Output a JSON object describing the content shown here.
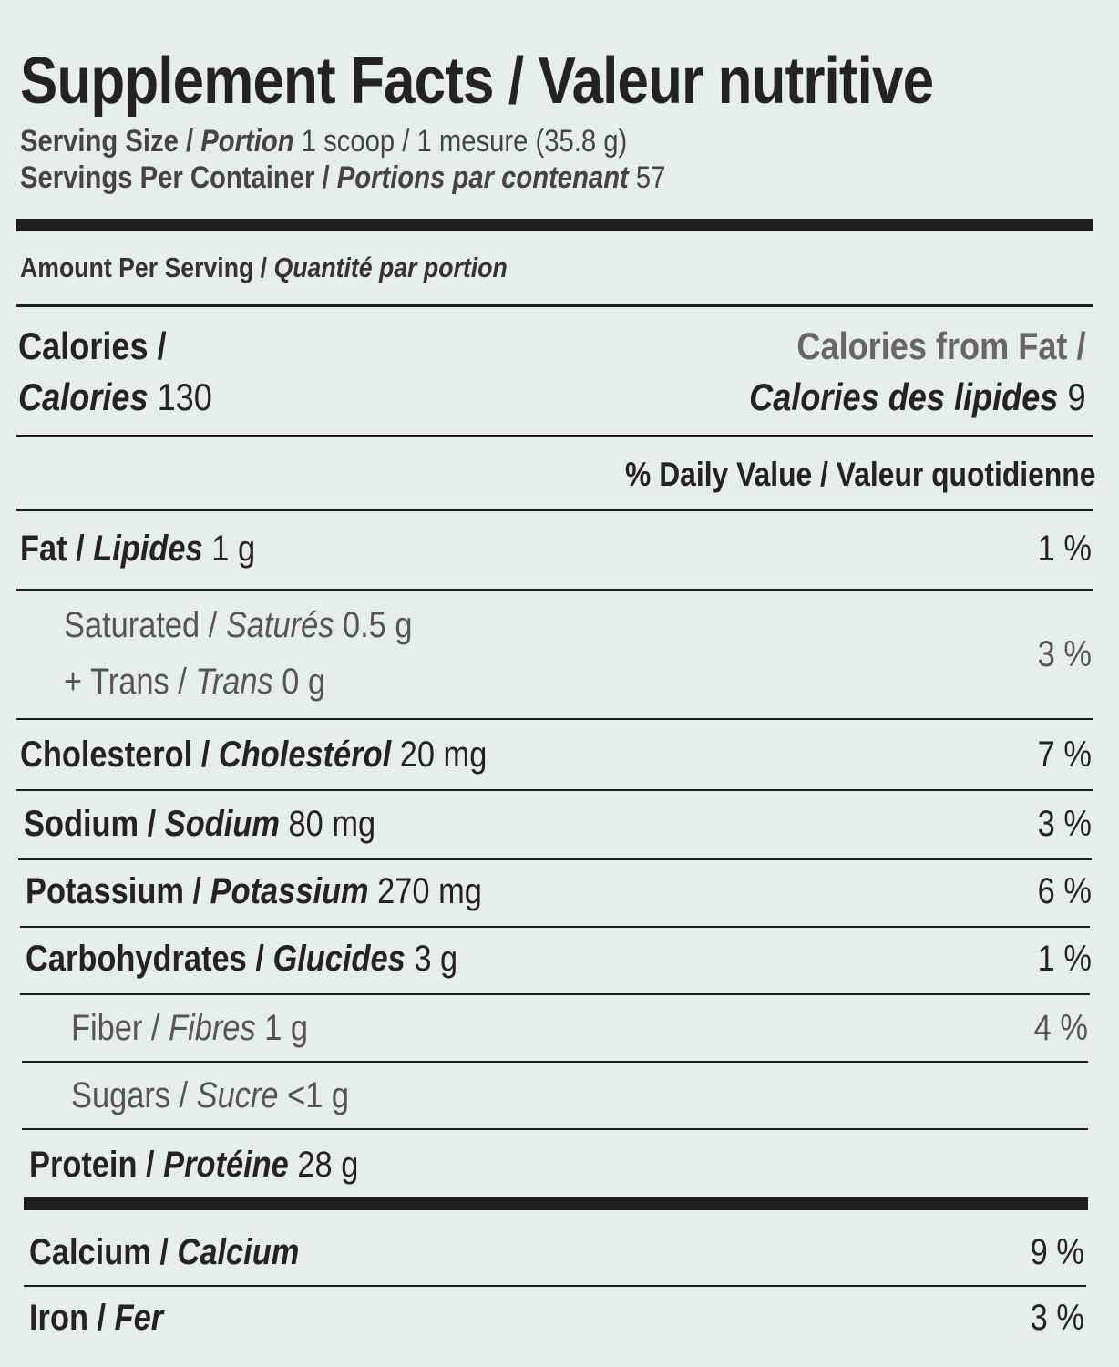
{
  "title": "Supplement Facts / Valeur nutritive",
  "serving_size": {
    "label": "Serving Size / ",
    "label_fr": "Portion",
    "value": " 1 scoop / 1 mesure (35.8 g)"
  },
  "servings_per_container": {
    "label": "Servings Per Container / ",
    "label_fr": "Portions par contenant",
    "value": " 57"
  },
  "amount_per_serving": {
    "label": "Amount Per Serving / ",
    "label_fr": "Quantité par portion"
  },
  "calories": {
    "label": "Calories /",
    "label_fr": "Calories",
    "value": " 130"
  },
  "calories_from_fat": {
    "label": "Calories from Fat /",
    "label_fr": "Calories des lipides",
    "value": " 9"
  },
  "daily_value_header": "% Daily Value / Valeur quotidienne",
  "rows": [
    {
      "en": "Fat / ",
      "fr": "Lipides",
      "amount": " 1 g",
      "dv": "1 %"
    },
    {
      "en": "Saturated / ",
      "fr": "Saturés",
      "amount": " 0.5 g",
      "dv": "3 %"
    },
    {
      "en": "+ Trans / ",
      "fr": "Trans",
      "amount": " 0 g"
    },
    {
      "en": "Cholesterol / ",
      "fr": "Cholestérol",
      "amount": " 20 mg",
      "dv": "7 %"
    },
    {
      "en": "Sodium / ",
      "fr": "Sodium",
      "amount": " 80 mg",
      "dv": "3 %"
    },
    {
      "en": "Potassium / ",
      "fr": "Potassium",
      "amount": " 270 mg",
      "dv": "6 %"
    },
    {
      "en": "Carbohydrates / ",
      "fr": "Glucides",
      "amount": " 3 g",
      "dv": "1 %"
    },
    {
      "en": "Fiber / ",
      "fr": "Fibres",
      "amount": " 1 g",
      "dv": "4 %"
    },
    {
      "en": "Sugars / ",
      "fr": "Sucre",
      "amount": " <1 g"
    },
    {
      "en": "Protein / ",
      "fr": "Protéine",
      "amount": " 28 g"
    },
    {
      "en": "Calcium / ",
      "fr": "Calcium",
      "dv": "9 %"
    },
    {
      "en": "Iron / ",
      "fr": "Fer",
      "dv": "3 %"
    }
  ]
}
